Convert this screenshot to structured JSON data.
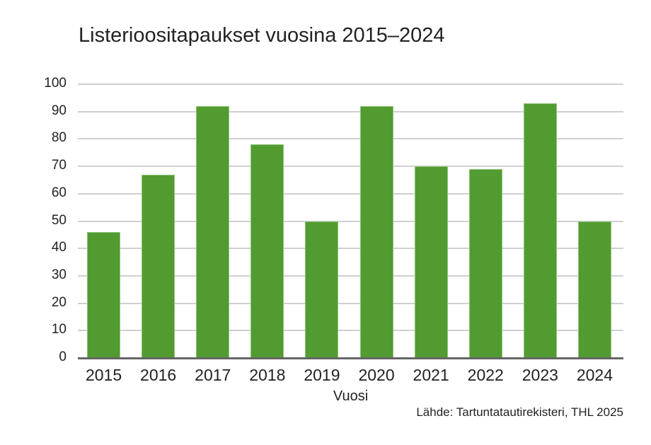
{
  "chart_data": {
    "type": "bar",
    "title": "Listerioositapaukset vuosina 2015–2024",
    "xlabel": "Vuosi",
    "ylabel": "",
    "categories": [
      "2015",
      "2016",
      "2017",
      "2018",
      "2019",
      "2020",
      "2021",
      "2022",
      "2023",
      "2024"
    ],
    "values": [
      46,
      67,
      92,
      78,
      50,
      92,
      70,
      69,
      93,
      50
    ],
    "ylim": [
      0,
      100
    ],
    "yticks": [
      "0",
      "10",
      "20",
      "30",
      "40",
      "50",
      "60",
      "70",
      "80",
      "90",
      "100"
    ],
    "grid": true,
    "legend": null,
    "bar_color": "#529b30",
    "source": "Lähde: Tartuntatautirekisteri, THL 2025"
  }
}
